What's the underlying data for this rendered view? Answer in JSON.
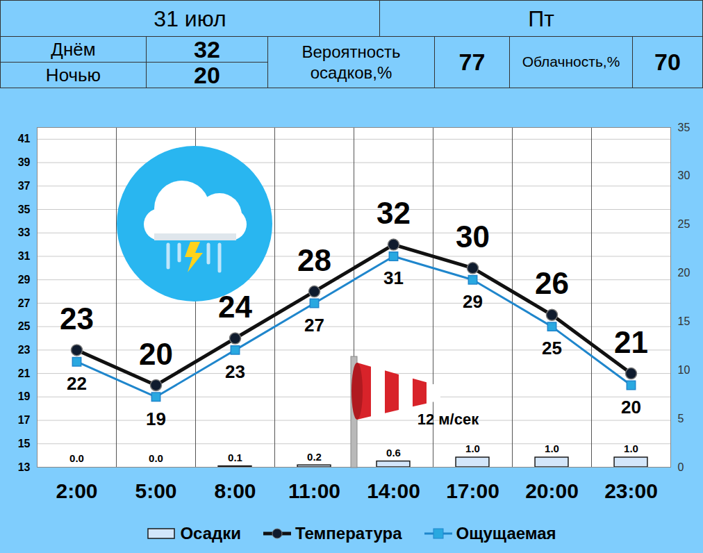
{
  "header": {
    "date": "31 июл",
    "weekday": "Пт",
    "rows": [
      {
        "label": "Днём",
        "value": 32
      },
      {
        "label": "Ночью",
        "value": 20
      }
    ],
    "precipitation_probability": {
      "label": "Вероятность осадков,%",
      "value": 77
    },
    "cloudiness": {
      "label": "Облачность,%",
      "value": 70
    }
  },
  "chart_data": {
    "type": "line",
    "categories": [
      "2:00",
      "5:00",
      "8:00",
      "11:00",
      "14:00",
      "17:00",
      "20:00",
      "23:00"
    ],
    "series": [
      {
        "name": "Осадки",
        "type": "bar",
        "axis": "y2",
        "color": "#d3e6fa",
        "values": [
          0.0,
          0.0,
          0.1,
          0.2,
          0.6,
          1.0,
          1.0,
          1.0
        ],
        "value_labels": [
          "0.0",
          "0.0",
          "0.1",
          "0.2",
          "0.6",
          "1.0",
          "1.0",
          "1.0"
        ]
      },
      {
        "name": "Температура",
        "type": "line",
        "color": "#111111",
        "marker": "circle",
        "values": [
          23,
          20,
          24,
          28,
          32,
          30,
          26,
          21
        ]
      },
      {
        "name": "Ощущаемая",
        "type": "line",
        "color": "#1f86cc",
        "marker": "square",
        "values": [
          22,
          19,
          23,
          27,
          31,
          29,
          25,
          20
        ]
      }
    ],
    "ylim": [
      13,
      42
    ],
    "yticks": [
      13,
      15,
      17,
      19,
      21,
      23,
      25,
      27,
      29,
      31,
      33,
      35,
      37,
      39,
      41
    ],
    "y2lim": [
      0,
      35
    ],
    "y2ticks": [
      0,
      5,
      10,
      15,
      20,
      25,
      30,
      35
    ],
    "grid": true,
    "data_labels": true,
    "legend": "bottom",
    "annotations": [
      {
        "text": "12 м/сек"
      }
    ]
  }
}
